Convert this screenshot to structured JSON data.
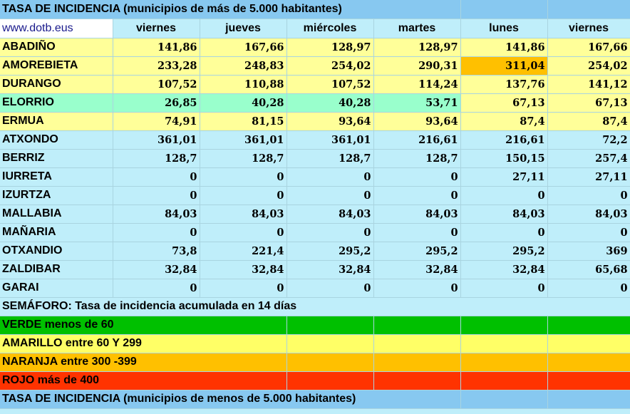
{
  "title_top": "TASA DE INCIDENCIA  (municipios de más de 5.000 habitantes)",
  "site": "www.dotb.eus",
  "days": [
    "viernes",
    "jueves",
    "miércoles",
    "martes",
    "lunes",
    "viernes"
  ],
  "rows": [
    {
      "name": "ABADIÑO",
      "values": [
        "141,86",
        "167,66",
        "128,97",
        "128,97",
        "141,86",
        "167,66"
      ],
      "colors": [
        "#ffff99",
        "#ffff99",
        "#ffff99",
        "#ffff99",
        "#ffff99",
        "#ffff99"
      ]
    },
    {
      "name": "AMOREBIETA",
      "values": [
        "233,28",
        "248,83",
        "254,02",
        "290,31",
        "311,04",
        "254,02"
      ],
      "colors": [
        "#ffff99",
        "#ffff99",
        "#ffff99",
        "#ffff99",
        "#ffc000",
        "#ffff99"
      ]
    },
    {
      "name": "DURANGO",
      "values": [
        "107,52",
        "110,88",
        "107,52",
        "114,24",
        "137,76",
        "141,12"
      ],
      "colors": [
        "#ffff99",
        "#ffff99",
        "#ffff99",
        "#ffff99",
        "#ffff99",
        "#ffff99"
      ]
    },
    {
      "name": "ELORRIO",
      "values": [
        "26,85",
        "40,28",
        "40,28",
        "53,71",
        "67,13",
        "67,13"
      ],
      "colors": [
        "#99ffcc",
        "#99ffcc",
        "#99ffcc",
        "#99ffcc",
        "#ffff99",
        "#ffff99"
      ]
    },
    {
      "name": "ERMUA",
      "values": [
        "74,91",
        "81,15",
        "93,64",
        "93,64",
        "87,4",
        "87,4"
      ],
      "colors": [
        "#ffff99",
        "#ffff99",
        "#ffff99",
        "#ffff99",
        "#ffff99",
        "#ffff99"
      ]
    },
    {
      "name": "ATXONDO",
      "values": [
        "361,01",
        "361,01",
        "361,01",
        "216,61",
        "216,61",
        "72,2"
      ]
    },
    {
      "name": "BERRIZ",
      "values": [
        "128,7",
        "128,7",
        "128,7",
        "128,7",
        "150,15",
        "257,4"
      ]
    },
    {
      "name": "IURRETA",
      "values": [
        "0",
        "0",
        "0",
        "0",
        "27,11",
        "27,11"
      ]
    },
    {
      "name": "IZURTZA",
      "values": [
        "0",
        "0",
        "0",
        "0",
        "0",
        "0"
      ]
    },
    {
      "name": "MALLABIA",
      "values": [
        "84,03",
        "84,03",
        "84,03",
        "84,03",
        "84,03",
        "84,03"
      ]
    },
    {
      "name": "MAÑARIA",
      "values": [
        "0",
        "0",
        "0",
        "0",
        "0",
        "0"
      ]
    },
    {
      "name": "OTXANDIO",
      "values": [
        "73,8",
        "221,4",
        "295,2",
        "295,2",
        "295,2",
        "369"
      ]
    },
    {
      "name": "ZALDIBAR",
      "values": [
        "32,84",
        "32,84",
        "32,84",
        "32,84",
        "32,84",
        "65,68"
      ]
    },
    {
      "name": "GARAI",
      "values": [
        "0",
        "0",
        "0",
        "0",
        "0",
        "0"
      ]
    }
  ],
  "semaforo": "SEMÁFORO:  Tasa de incidencia acumulada en 14 días",
  "legend": [
    {
      "label": "VERDE menos de 60",
      "color": "#00c000"
    },
    {
      "label": "AMARILLO entre 60 Y 299",
      "color": "#ffff66"
    },
    {
      "label": "NARANJA entre 300 -399",
      "color": "#ffc000"
    },
    {
      "label": "ROJO más de 400",
      "color": "#ff3300"
    }
  ],
  "title_bottom": "TASA DE INCIDENCIA  (municipios de menos de 5.000 habitantes)"
}
